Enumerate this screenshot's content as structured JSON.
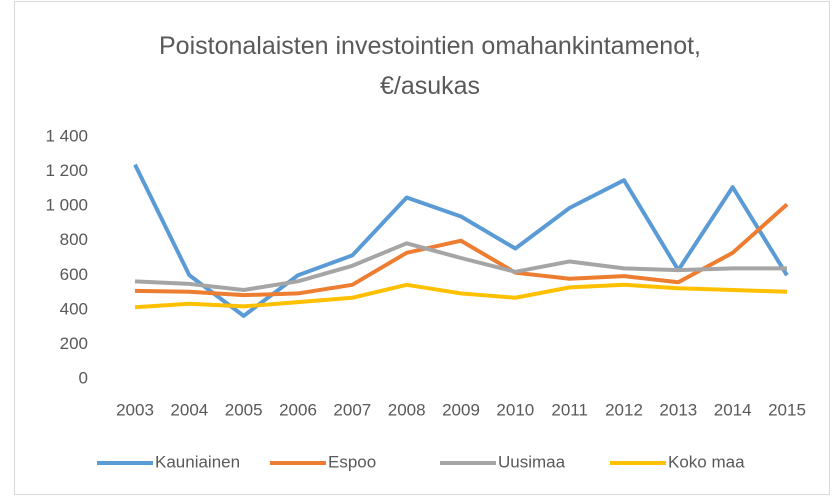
{
  "chart_data": {
    "type": "line",
    "title": "Poistonalaisten investointien omahankintamenot, €/asukas",
    "categories": [
      "2003",
      "2004",
      "2005",
      "2006",
      "2007",
      "2008",
      "2009",
      "2010",
      "2011",
      "2012",
      "2013",
      "2014",
      "2015"
    ],
    "series": [
      {
        "name": "Kauniainen",
        "color": "#5b9bd5",
        "values": [
          1240,
          600,
          365,
          600,
          715,
          1050,
          940,
          755,
          990,
          1150,
          630,
          1110,
          600
        ]
      },
      {
        "name": "Espoo",
        "color": "#ed7d31",
        "values": [
          510,
          505,
          485,
          495,
          545,
          730,
          800,
          615,
          580,
          595,
          560,
          730,
          1010
        ]
      },
      {
        "name": "Uusimaa",
        "color": "#a5a5a5",
        "values": [
          565,
          550,
          515,
          565,
          655,
          785,
          700,
          620,
          680,
          640,
          630,
          640,
          640
        ]
      },
      {
        "name": "Koko maa",
        "color": "#ffc000",
        "values": [
          415,
          435,
          420,
          445,
          470,
          545,
          495,
          470,
          530,
          545,
          525,
          515,
          505
        ]
      }
    ],
    "ylim": [
      0,
      1400
    ],
    "yticks": [
      0,
      200,
      400,
      600,
      800,
      {
        "value": 1000,
        "label": "1 000"
      },
      {
        "value": 1200,
        "label": "1 200"
      },
      {
        "value": 1400,
        "label": "1 400"
      }
    ],
    "grid": false,
    "legend": "bottom"
  }
}
